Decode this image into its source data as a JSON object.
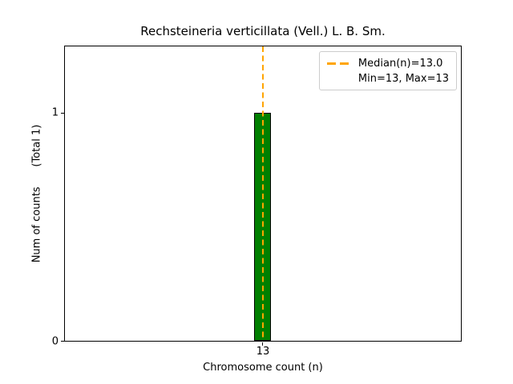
{
  "chart_data": {
    "type": "bar",
    "title": "Rechsteineria verticillata (Vell.) L. B. Sm.",
    "xlabel": "Chromosome count (n)",
    "ylabel": "Num of counts      (Total 1)",
    "categories": [
      "13"
    ],
    "values": [
      1
    ],
    "total_label": "(Total 1)",
    "x_tick_labels": [
      "13"
    ],
    "y_tick_labels": [
      "0",
      "1"
    ],
    "yticks": [
      0,
      1
    ],
    "ylim": [
      0,
      1.29
    ],
    "grid": false,
    "bar_color": "#008000",
    "bar_edge_color": "#000000",
    "median_line": {
      "value": 13.0,
      "color": "#FFA500",
      "style": "dashed"
    },
    "legend": {
      "position": "upper right",
      "entries": [
        {
          "label": "Median(n)=13.0",
          "marker": "dashed-line",
          "color": "#FFA500"
        },
        {
          "label": "Min=13, Max=13",
          "marker": "none"
        }
      ]
    }
  }
}
